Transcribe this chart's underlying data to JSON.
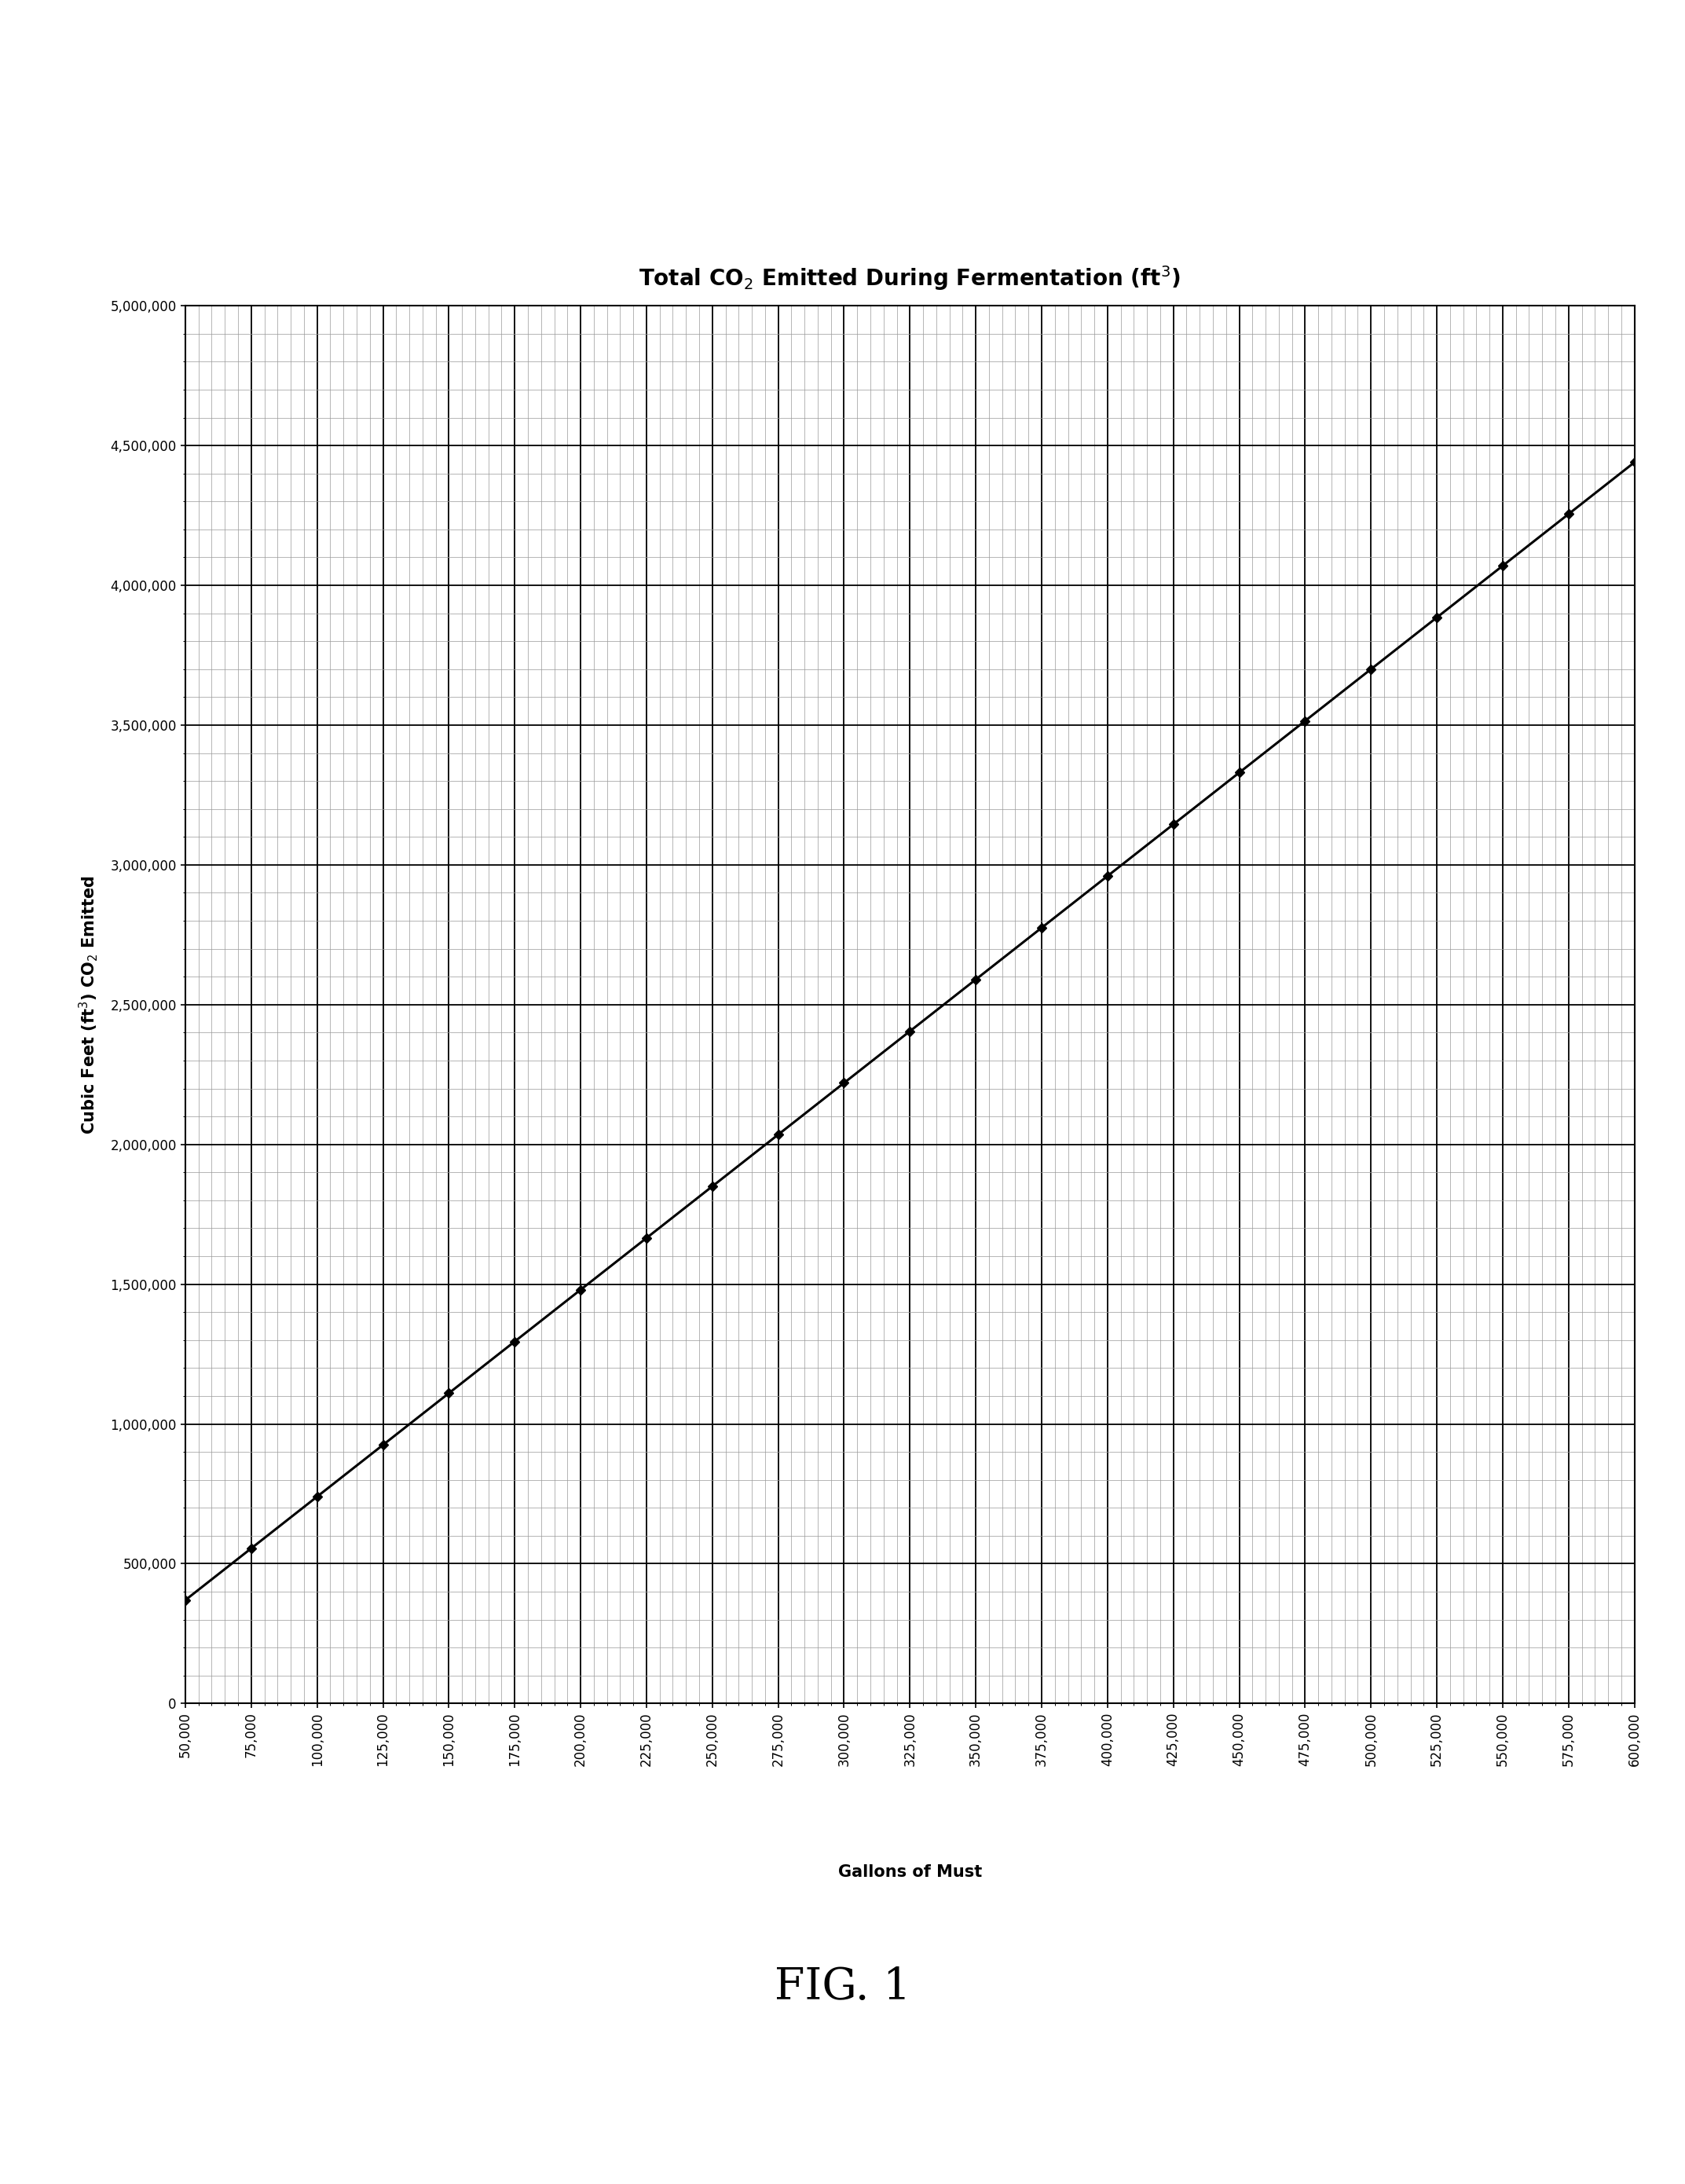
{
  "title": "Total CO$_2$ Emitted During Fermentation (ft$^3$)",
  "xlabel": "Gallons of Must",
  "ylabel": "Cubic Feet (ft$^3$) CO$_2$ Emitted",
  "xlim": [
    50000,
    600000
  ],
  "ylim": [
    0,
    5000000
  ],
  "x_ticks": [
    50000,
    75000,
    100000,
    125000,
    150000,
    175000,
    200000,
    225000,
    250000,
    275000,
    300000,
    325000,
    350000,
    375000,
    400000,
    425000,
    450000,
    475000,
    500000,
    525000,
    550000,
    575000,
    600000
  ],
  "y_ticks": [
    0,
    500000,
    1000000,
    1500000,
    2000000,
    2500000,
    3000000,
    3500000,
    4000000,
    4500000,
    5000000
  ],
  "data_x": [
    50000,
    75000,
    100000,
    125000,
    150000,
    175000,
    200000,
    225000,
    250000,
    275000,
    300000,
    325000,
    350000,
    375000,
    400000,
    425000,
    450000,
    475000,
    500000,
    525000,
    550000,
    575000,
    600000
  ],
  "data_y": [
    370000,
    555000,
    740000,
    925000,
    1110000,
    1295000,
    1480000,
    1665000,
    1850000,
    2035000,
    2220000,
    2405000,
    2590000,
    2775000,
    2960000,
    3145000,
    3330000,
    3515000,
    3700000,
    3885000,
    4070000,
    4255000,
    4440000
  ],
  "line_color": "#000000",
  "marker": "D",
  "marker_size": 6,
  "marker_color": "#000000",
  "line_width": 2.2,
  "title_fontsize": 20,
  "axis_label_fontsize": 15,
  "tick_fontsize": 12,
  "fig_label": "FIG. 1",
  "fig_label_fontsize": 40,
  "background_color": "#ffffff",
  "grid_major_color": "#000000",
  "grid_minor_color": "#999999"
}
